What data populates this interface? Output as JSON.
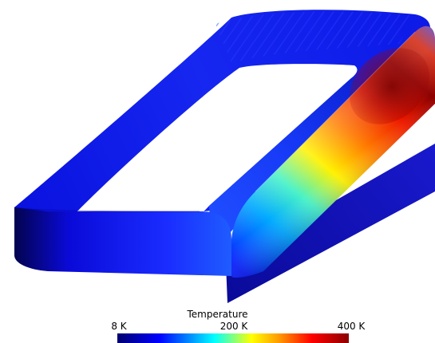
{
  "colorbar": {
    "title": "Temperature",
    "ticks": [
      "8 K",
      "200 K",
      "400 K"
    ],
    "range": [
      8,
      400
    ],
    "unit": "K",
    "colormap": [
      "#00006e",
      "#0000ff",
      "#00aaff",
      "#00ffff",
      "#80ff80",
      "#ffff00",
      "#ff9900",
      "#ff0000",
      "#8b0000"
    ]
  },
  "scene": {
    "object": "racetrack-coil",
    "hot_color": "#8b0000",
    "cold_color": "#0000cc",
    "hot_region": "right straight section"
  }
}
